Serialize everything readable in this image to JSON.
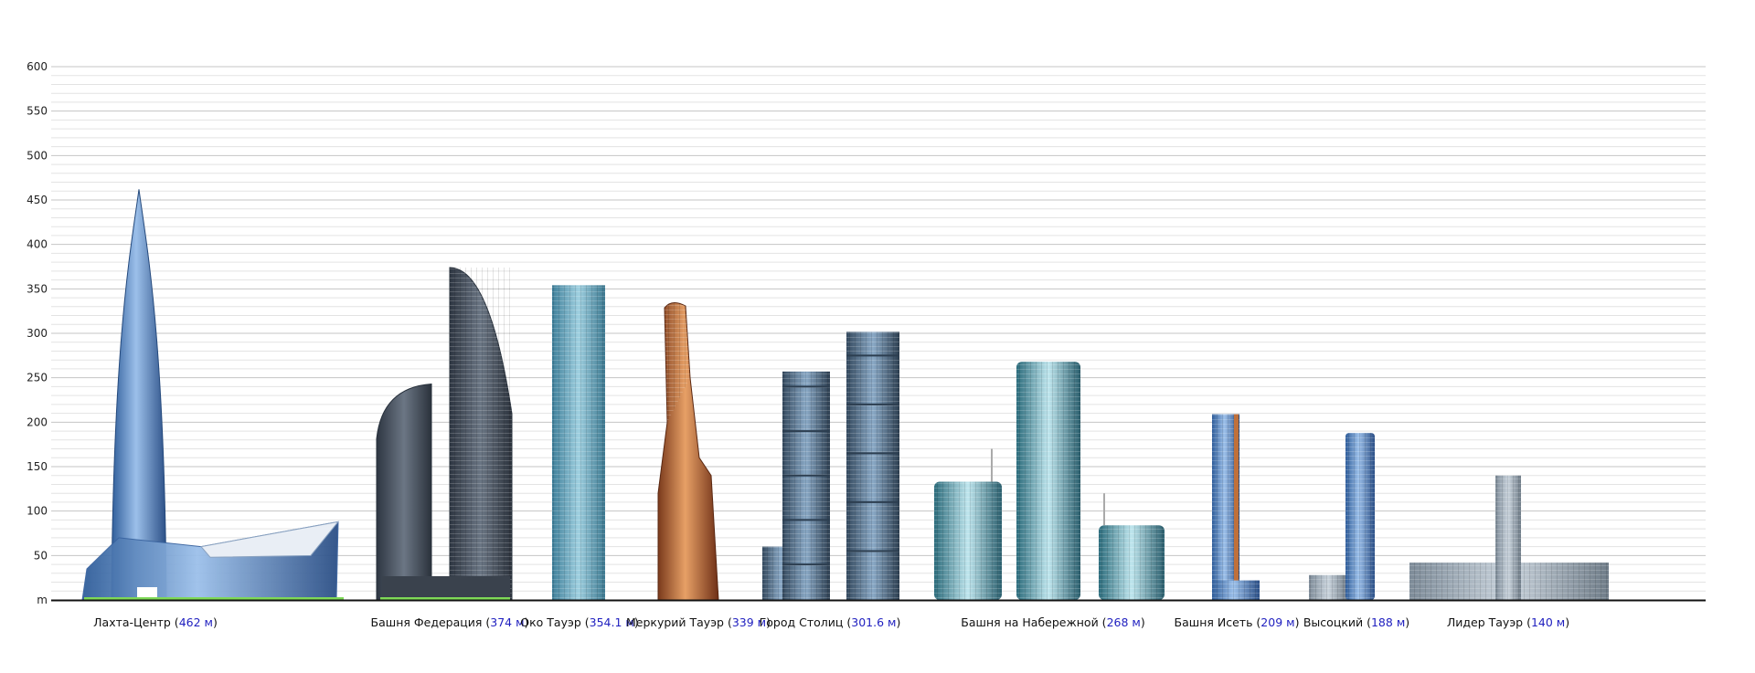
{
  "chart_data": {
    "type": "bar",
    "ylim": [
      0,
      600
    ],
    "y_ticks": [
      "m",
      "50",
      "100",
      "150",
      "200",
      "250",
      "300",
      "350",
      "400",
      "450",
      "500",
      "550",
      "600"
    ],
    "grid": true,
    "categories": [
      "Лахта-Центр",
      "Башня Федерация",
      "Око Тауэр",
      "Меркурий Тауэр",
      "Город Столиц",
      "Башня на Набережной",
      "Башня Исеть",
      "Высоцкий",
      "Лидер Тауэр"
    ],
    "value_labels": [
      "462 м",
      "374 м",
      "354.1 м",
      "339 м",
      "301.6 м",
      "268 м",
      "209 м",
      "188 м",
      "140 м"
    ],
    "values": [
      462,
      374,
      354.1,
      339,
      301.6,
      268,
      209,
      188,
      140
    ],
    "colors": {
      "glass_blue": "#5f8fcf",
      "dark_glass": "#4b5563",
      "teal_glass": "#6fa7bf",
      "copper": "#c0703a",
      "ground_green": "#7ed957",
      "value_text": "#1f1fbf"
    }
  }
}
